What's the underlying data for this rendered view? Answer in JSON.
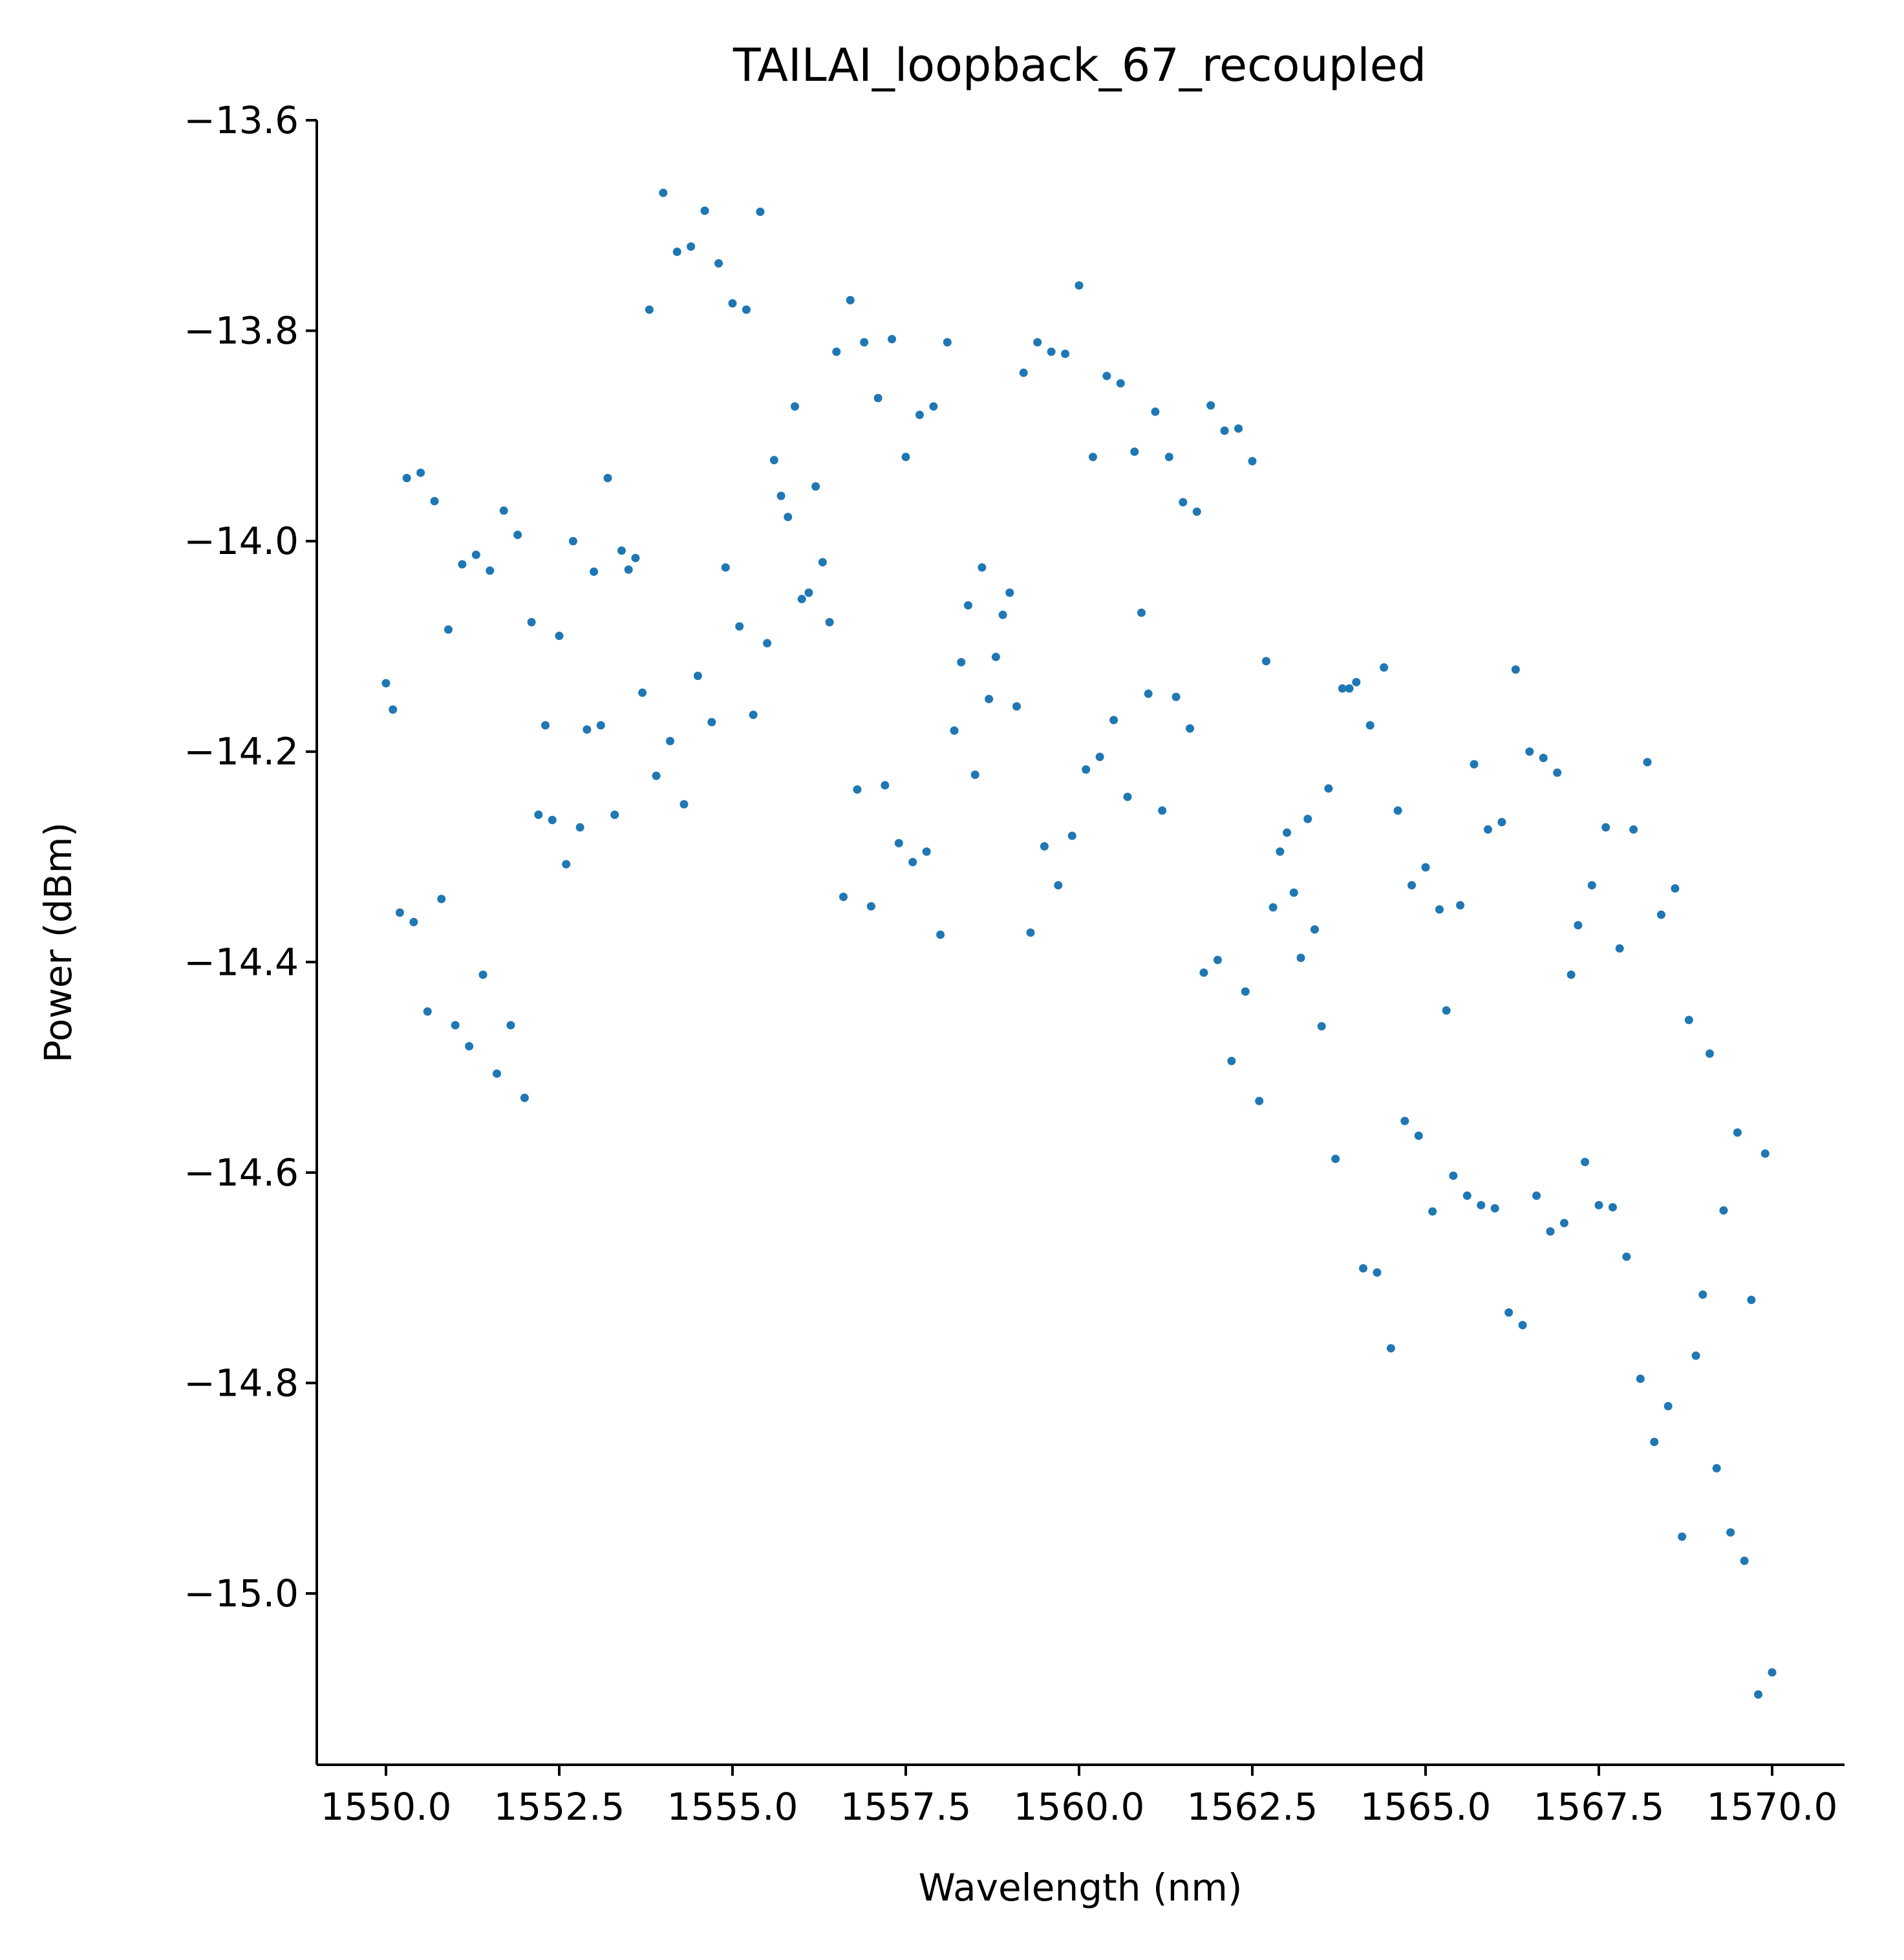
{
  "chart_data": {
    "type": "scatter",
    "title": "TAILAI_loopback_67_recoupled",
    "xlabel": "Wavelength (nm)",
    "ylabel": "Power (dBm)",
    "xlim": [
      1549.0,
      1571.0
    ],
    "ylim": [
      -15.17,
      -13.6
    ],
    "xticks": [
      1550.0,
      1552.5,
      1555.0,
      1557.5,
      1560.0,
      1562.5,
      1565.0,
      1567.5,
      1570.0
    ],
    "xtick_labels": [
      "1550.0",
      "1552.5",
      "1555.0",
      "1557.5",
      "1560.0",
      "1562.5",
      "1565.0",
      "1567.5",
      "1570.0"
    ],
    "yticks": [
      -13.6,
      -13.8,
      -14.0,
      -14.2,
      -14.4,
      -14.6,
      -14.8,
      -15.0
    ],
    "ytick_labels": [
      "−13.6",
      "−13.8",
      "−14.0",
      "−14.2",
      "−14.4",
      "−14.6",
      "−14.8",
      "−15.0"
    ],
    "grid": false,
    "legend": "none",
    "marker_color": "#1f77b4",
    "series": [
      {
        "points": [
          [
            1550.0,
            -14.135
          ],
          [
            1550.1,
            -14.16
          ],
          [
            1550.2,
            -14.353
          ],
          [
            1550.3,
            -13.94
          ],
          [
            1550.4,
            -14.362
          ],
          [
            1550.5,
            -13.935
          ],
          [
            1550.6,
            -14.447
          ],
          [
            1550.7,
            -13.962
          ],
          [
            1550.8,
            -14.34
          ],
          [
            1550.9,
            -14.084
          ],
          [
            1551.0,
            -14.46
          ],
          [
            1551.1,
            -14.022
          ],
          [
            1551.2,
            -14.48
          ],
          [
            1551.3,
            -14.013
          ],
          [
            1551.4,
            -14.412
          ],
          [
            1551.5,
            -14.028
          ],
          [
            1551.6,
            -14.506
          ],
          [
            1551.7,
            -13.971
          ],
          [
            1551.8,
            -14.46
          ],
          [
            1551.9,
            -13.994
          ],
          [
            1552.0,
            -14.529
          ],
          [
            1552.1,
            -14.077
          ],
          [
            1552.2,
            -14.26
          ],
          [
            1552.3,
            -14.175
          ],
          [
            1552.4,
            -14.265
          ],
          [
            1552.5,
            -14.09
          ],
          [
            1552.6,
            -14.307
          ],
          [
            1552.7,
            -14.0
          ],
          [
            1552.8,
            -14.272
          ],
          [
            1552.9,
            -14.179
          ],
          [
            1553.0,
            -14.029
          ],
          [
            1553.1,
            -14.175
          ],
          [
            1553.2,
            -13.94
          ],
          [
            1553.3,
            -14.26
          ],
          [
            1553.4,
            -14.009
          ],
          [
            1553.5,
            -14.027
          ],
          [
            1553.6,
            -14.016
          ],
          [
            1553.7,
            -14.144
          ],
          [
            1553.8,
            -13.78
          ],
          [
            1553.9,
            -14.223
          ],
          [
            1554.0,
            -13.669
          ],
          [
            1554.1,
            -14.19
          ],
          [
            1554.2,
            -13.725
          ],
          [
            1554.3,
            -14.25
          ],
          [
            1554.4,
            -13.72
          ],
          [
            1554.5,
            -14.128
          ],
          [
            1554.6,
            -13.686
          ],
          [
            1554.7,
            -14.172
          ],
          [
            1554.8,
            -13.736
          ],
          [
            1554.9,
            -14.025
          ],
          [
            1555.0,
            -13.774
          ],
          [
            1555.1,
            -14.081
          ],
          [
            1555.2,
            -13.78
          ],
          [
            1555.3,
            -14.165
          ],
          [
            1555.4,
            -13.687
          ],
          [
            1555.5,
            -14.097
          ],
          [
            1555.6,
            -13.923
          ],
          [
            1555.7,
            -13.957
          ],
          [
            1555.8,
            -13.977
          ],
          [
            1555.9,
            -13.872
          ],
          [
            1556.0,
            -14.055
          ],
          [
            1556.1,
            -14.049
          ],
          [
            1556.2,
            -13.948
          ],
          [
            1556.3,
            -14.02
          ],
          [
            1556.4,
            -14.077
          ],
          [
            1556.5,
            -13.82
          ],
          [
            1556.6,
            -14.338
          ],
          [
            1556.7,
            -13.771
          ],
          [
            1556.8,
            -14.236
          ],
          [
            1556.9,
            -13.811
          ],
          [
            1557.0,
            -14.347
          ],
          [
            1557.1,
            -13.864
          ],
          [
            1557.2,
            -14.232
          ],
          [
            1557.3,
            -13.808
          ],
          [
            1557.4,
            -14.287
          ],
          [
            1557.5,
            -13.92
          ],
          [
            1557.6,
            -14.305
          ],
          [
            1557.7,
            -13.88
          ],
          [
            1557.8,
            -14.295
          ],
          [
            1557.9,
            -13.872
          ],
          [
            1558.0,
            -14.374
          ],
          [
            1558.1,
            -13.811
          ],
          [
            1558.2,
            -14.18
          ],
          [
            1558.3,
            -14.115
          ],
          [
            1558.4,
            -14.061
          ],
          [
            1558.5,
            -14.222
          ],
          [
            1558.6,
            -14.025
          ],
          [
            1558.7,
            -14.15
          ],
          [
            1558.8,
            -14.11
          ],
          [
            1558.9,
            -14.07
          ],
          [
            1559.0,
            -14.049
          ],
          [
            1559.1,
            -14.157
          ],
          [
            1559.2,
            -13.84
          ],
          [
            1559.3,
            -14.372
          ],
          [
            1559.4,
            -13.811
          ],
          [
            1559.5,
            -14.29
          ],
          [
            1559.6,
            -13.82
          ],
          [
            1559.7,
            -14.327
          ],
          [
            1559.8,
            -13.822
          ],
          [
            1559.9,
            -14.28
          ],
          [
            1560.0,
            -13.757
          ],
          [
            1560.1,
            -14.217
          ],
          [
            1560.2,
            -13.92
          ],
          [
            1560.3,
            -14.205
          ],
          [
            1560.4,
            -13.843
          ],
          [
            1560.5,
            -14.17
          ],
          [
            1560.6,
            -13.85
          ],
          [
            1560.7,
            -14.243
          ],
          [
            1560.8,
            -13.915
          ],
          [
            1560.9,
            -14.068
          ],
          [
            1561.0,
            -14.145
          ],
          [
            1561.1,
            -13.877
          ],
          [
            1561.2,
            -14.256
          ],
          [
            1561.3,
            -13.92
          ],
          [
            1561.4,
            -14.148
          ],
          [
            1561.5,
            -13.963
          ],
          [
            1561.6,
            -14.178
          ],
          [
            1561.7,
            -13.972
          ],
          [
            1561.8,
            -14.41
          ],
          [
            1561.9,
            -13.871
          ],
          [
            1562.0,
            -14.398
          ],
          [
            1562.1,
            -13.895
          ],
          [
            1562.2,
            -14.494
          ],
          [
            1562.3,
            -13.893
          ],
          [
            1562.4,
            -14.428
          ],
          [
            1562.5,
            -13.924
          ],
          [
            1562.6,
            -14.532
          ],
          [
            1562.7,
            -14.114
          ],
          [
            1562.8,
            -14.348
          ],
          [
            1562.9,
            -14.295
          ],
          [
            1563.0,
            -14.277
          ],
          [
            1563.1,
            -14.334
          ],
          [
            1563.2,
            -14.396
          ],
          [
            1563.3,
            -14.264
          ],
          [
            1563.4,
            -14.369
          ],
          [
            1563.5,
            -14.461
          ],
          [
            1563.6,
            -14.235
          ],
          [
            1563.7,
            -14.587
          ],
          [
            1563.8,
            -14.14
          ],
          [
            1563.9,
            -14.14
          ],
          [
            1564.0,
            -14.134
          ],
          [
            1564.1,
            -14.691
          ],
          [
            1564.2,
            -14.175
          ],
          [
            1564.3,
            -14.695
          ],
          [
            1564.4,
            -14.12
          ],
          [
            1564.5,
            -14.767
          ],
          [
            1564.6,
            -14.256
          ],
          [
            1564.7,
            -14.551
          ],
          [
            1564.8,
            -14.327
          ],
          [
            1564.9,
            -14.565
          ],
          [
            1565.0,
            -14.31
          ],
          [
            1565.1,
            -14.637
          ],
          [
            1565.2,
            -14.35
          ],
          [
            1565.3,
            -14.446
          ],
          [
            1565.4,
            -14.603
          ],
          [
            1565.5,
            -14.346
          ],
          [
            1565.6,
            -14.622
          ],
          [
            1565.7,
            -14.212
          ],
          [
            1565.8,
            -14.631
          ],
          [
            1565.9,
            -14.274
          ],
          [
            1566.0,
            -14.634
          ],
          [
            1566.1,
            -14.267
          ],
          [
            1566.2,
            -14.733
          ],
          [
            1566.3,
            -14.122
          ],
          [
            1566.4,
            -14.745
          ],
          [
            1566.5,
            -14.2
          ],
          [
            1566.6,
            -14.622
          ],
          [
            1566.7,
            -14.206
          ],
          [
            1566.8,
            -14.656
          ],
          [
            1566.9,
            -14.22
          ],
          [
            1567.0,
            -14.648
          ],
          [
            1567.1,
            -14.412
          ],
          [
            1567.2,
            -14.365
          ],
          [
            1567.3,
            -14.59
          ],
          [
            1567.4,
            -14.327
          ],
          [
            1567.5,
            -14.631
          ],
          [
            1567.6,
            -14.272
          ],
          [
            1567.7,
            -14.633
          ],
          [
            1567.8,
            -14.387
          ],
          [
            1567.9,
            -14.68
          ],
          [
            1568.0,
            -14.274
          ],
          [
            1568.1,
            -14.796
          ],
          [
            1568.2,
            -14.21
          ],
          [
            1568.3,
            -14.856
          ],
          [
            1568.4,
            -14.355
          ],
          [
            1568.5,
            -14.822
          ],
          [
            1568.6,
            -14.33
          ],
          [
            1568.7,
            -14.946
          ],
          [
            1568.8,
            -14.455
          ],
          [
            1568.9,
            -14.774
          ],
          [
            1569.0,
            -14.716
          ],
          [
            1569.1,
            -14.487
          ],
          [
            1569.2,
            -14.881
          ],
          [
            1569.3,
            -14.636
          ],
          [
            1569.4,
            -14.942
          ],
          [
            1569.5,
            -14.562
          ],
          [
            1569.6,
            -14.969
          ],
          [
            1569.7,
            -14.721
          ],
          [
            1569.8,
            -15.096
          ],
          [
            1569.9,
            -14.582
          ],
          [
            1570.0,
            -15.075
          ]
        ]
      }
    ]
  }
}
